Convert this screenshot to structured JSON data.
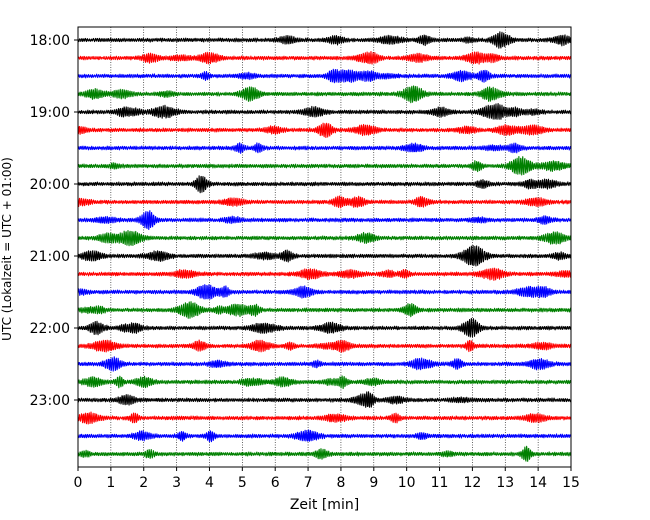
{
  "chart_data": {
    "type": "line",
    "title": "",
    "xlabel": "Zeit  [min]",
    "ylabel": "UTC (Lokalzeit = UTC + 01:00)",
    "xlim": [
      0,
      15
    ],
    "x_ticks": [
      0,
      1,
      2,
      3,
      4,
      5,
      6,
      7,
      8,
      9,
      10,
      11,
      12,
      13,
      14,
      15
    ],
    "y_ticks": [
      "18:00",
      "19:00",
      "20:00",
      "21:00",
      "22:00",
      "23:00"
    ],
    "grid": "vertical dotted at each minute",
    "legend": "none",
    "trace_interval_minutes": 15,
    "trace_colors": [
      "#000000",
      "#ff0000",
      "#0000ff",
      "#008000"
    ],
    "series": [
      {
        "start": "18:00",
        "color": "#000000"
      },
      {
        "start": "18:15",
        "color": "#ff0000"
      },
      {
        "start": "18:30",
        "color": "#0000ff"
      },
      {
        "start": "18:45",
        "color": "#008000"
      },
      {
        "start": "19:00",
        "color": "#000000"
      },
      {
        "start": "19:15",
        "color": "#ff0000"
      },
      {
        "start": "19:30",
        "color": "#0000ff"
      },
      {
        "start": "19:45",
        "color": "#008000"
      },
      {
        "start": "20:00",
        "color": "#000000"
      },
      {
        "start": "20:15",
        "color": "#ff0000"
      },
      {
        "start": "20:30",
        "color": "#0000ff"
      },
      {
        "start": "20:45",
        "color": "#008000"
      },
      {
        "start": "21:00",
        "color": "#000000"
      },
      {
        "start": "21:15",
        "color": "#ff0000"
      },
      {
        "start": "21:30",
        "color": "#0000ff"
      },
      {
        "start": "21:45",
        "color": "#008000"
      },
      {
        "start": "22:00",
        "color": "#000000"
      },
      {
        "start": "22:15",
        "color": "#ff0000"
      },
      {
        "start": "22:30",
        "color": "#0000ff"
      },
      {
        "start": "22:45",
        "color": "#008000"
      },
      {
        "start": "23:00",
        "color": "#000000"
      },
      {
        "start": "23:15",
        "color": "#ff0000"
      },
      {
        "start": "23:30",
        "color": "#0000ff"
      },
      {
        "start": "23:45",
        "color": "#008000"
      }
    ]
  }
}
